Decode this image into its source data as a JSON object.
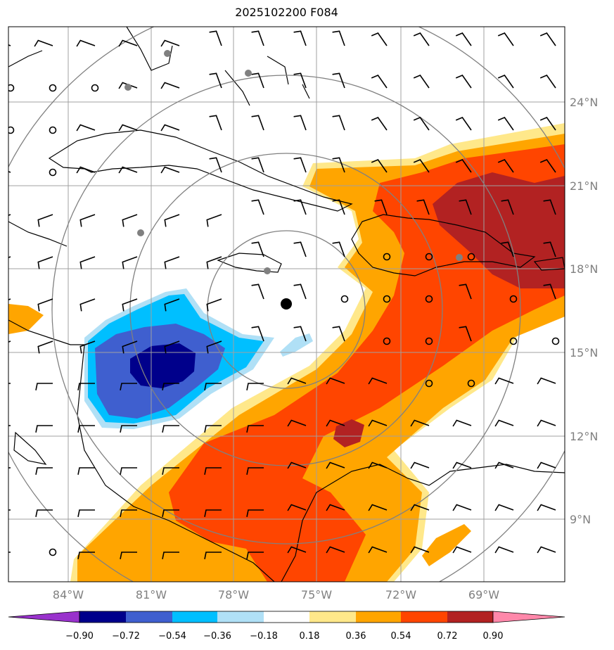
{
  "title": "2025102200 F084",
  "map": {
    "lat_labels": [
      "24°N",
      "21°N",
      "18°N",
      "15°N",
      "12°N",
      "9°N"
    ],
    "lon_labels": [
      "84°W",
      "81°W",
      "78°W",
      "75°W",
      "72°W",
      "69°W"
    ],
    "colors": {
      "grid": "#a0a0a0",
      "range_rings": "#808080",
      "coast": "#000000",
      "center_marker": "#000000",
      "station_marker": "#808080"
    }
  },
  "colorbar": {
    "ticks": [
      "−0.90",
      "−0.72",
      "−0.54",
      "−0.36",
      "−0.18",
      "0.18",
      "0.36",
      "0.54",
      "0.72",
      "0.90"
    ],
    "colors": [
      "#9932cc",
      "#00008b",
      "#3f5fcf",
      "#00bfff",
      "#b0e0f6",
      "#ffffff",
      "#ffe88a",
      "#ffa500",
      "#ff4500",
      "#b22222",
      "#ff88aa"
    ]
  }
}
